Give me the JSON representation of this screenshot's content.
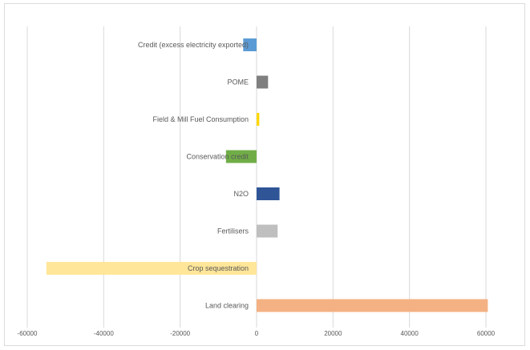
{
  "chart_data": {
    "type": "bar",
    "orientation": "horizontal",
    "title": "",
    "xlabel": "",
    "ylabel": "",
    "categories": [
      "Credit (excess electricity exported)",
      "POME",
      "Field & Mill Fuel Consumption",
      "Conservation credit",
      "N2O",
      "Fertilisers",
      "Crop sequestration",
      "Land clearing"
    ],
    "values": [
      -3500,
      3000,
      700,
      -8000,
      6000,
      5500,
      -55000,
      60500
    ],
    "colors": [
      "#5b9bd5",
      "#7f7f7f",
      "#ffd700",
      "#70ad47",
      "#2f5597",
      "#bfbfbf",
      "#ffe699",
      "#f4b183"
    ],
    "xlim": [
      -60000,
      60000
    ],
    "xticks": [
      -60000,
      -40000,
      -20000,
      0,
      20000,
      40000,
      60000
    ],
    "grid": true,
    "legend": "none"
  }
}
